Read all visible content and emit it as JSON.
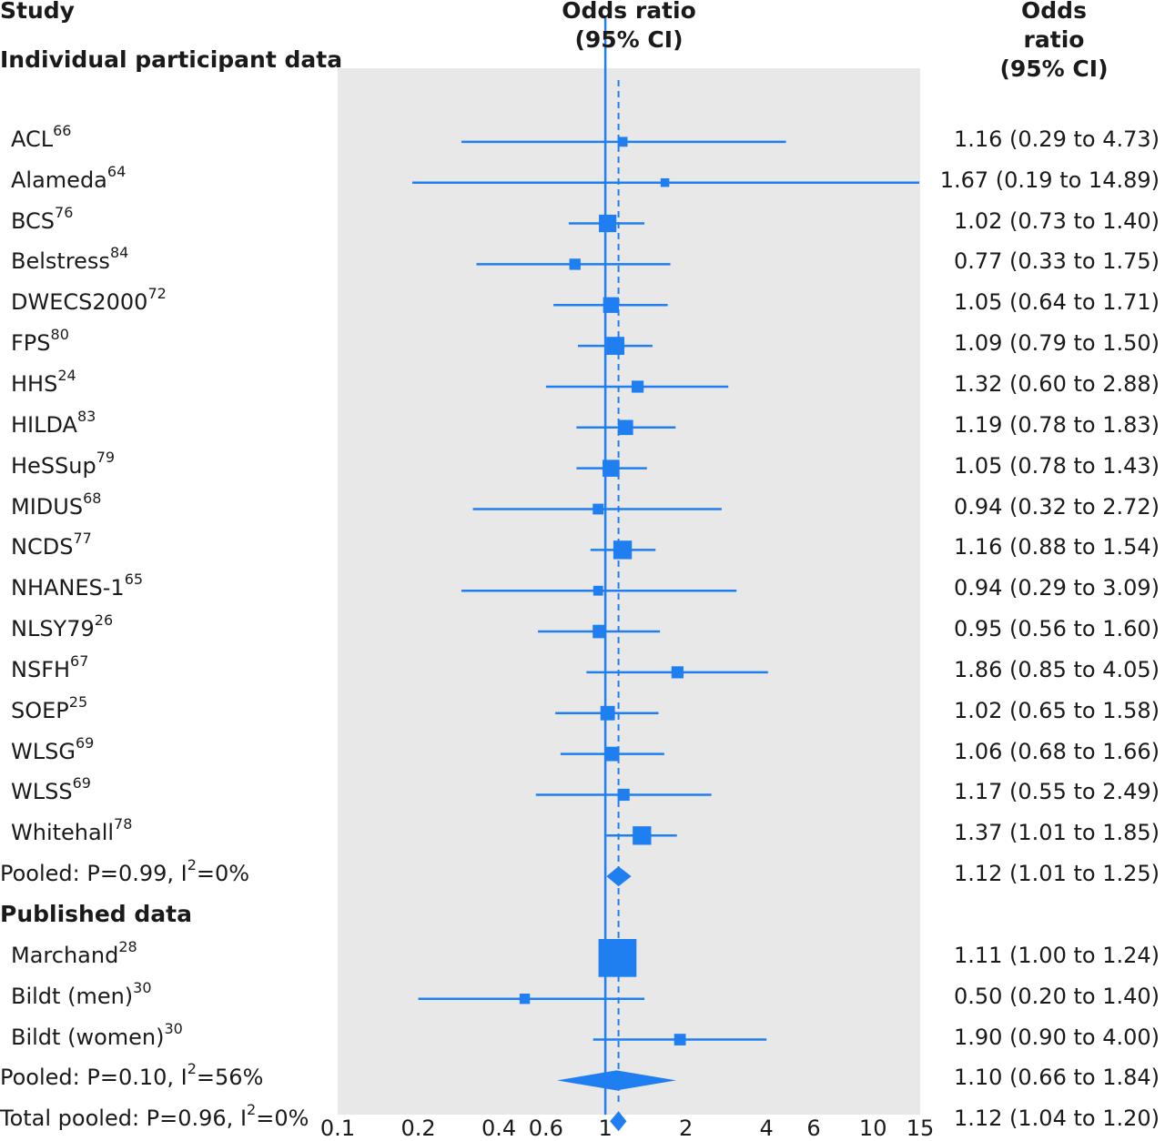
{
  "chart_data": {
    "type": "forest",
    "col_headers": {
      "study": "Study",
      "plot_line1": "Odds ratio",
      "plot_line2": "(95% CI)",
      "ci_line1": "Odds ratio",
      "ci_line2": "(95% CI)"
    },
    "x_axis": {
      "scale": "log",
      "xlim": [
        0.1,
        15
      ],
      "ticks": [
        0.1,
        0.2,
        0.4,
        0.6,
        1,
        2,
        4,
        6,
        10,
        15
      ],
      "tick_labels": [
        "0.1",
        "0.2",
        "0.4",
        "0.6",
        "1",
        "2",
        "4",
        "6",
        "10",
        "15"
      ],
      "null_line": 1,
      "pooled_line": 1.12
    },
    "rows": [
      {
        "kind": "group",
        "label": "Individual participant data"
      },
      {
        "kind": "study",
        "name": "ACL",
        "ref": "66",
        "or": 1.16,
        "lo": 0.29,
        "hi": 4.73,
        "weight": 1.0,
        "text": "1.16 (0.29 to 4.73)"
      },
      {
        "kind": "study",
        "name": "Alameda",
        "ref": "64",
        "or": 1.67,
        "lo": 0.19,
        "hi": 14.89,
        "weight": 0.6,
        "text": "1.67 (0.19 to 14.89)"
      },
      {
        "kind": "study",
        "name": "BCS",
        "ref": "76",
        "or": 1.02,
        "lo": 0.73,
        "hi": 1.4,
        "weight": 6.0,
        "text": "1.02 (0.73 to 1.40)"
      },
      {
        "kind": "study",
        "name": "Belstress",
        "ref": "84",
        "or": 0.77,
        "lo": 0.33,
        "hi": 1.75,
        "weight": 1.6,
        "text": "0.77 (0.33 to 1.75)"
      },
      {
        "kind": "study",
        "name": "DWECS2000",
        "ref": "72",
        "or": 1.05,
        "lo": 0.64,
        "hi": 1.71,
        "weight": 4.5,
        "text": "1.05 (0.64 to 1.71)"
      },
      {
        "kind": "study",
        "name": "FPS",
        "ref": "80",
        "or": 1.09,
        "lo": 0.79,
        "hi": 1.5,
        "weight": 6.5,
        "text": "1.09 (0.79 to 1.50)"
      },
      {
        "kind": "study",
        "name": "HHS",
        "ref": "24",
        "or": 1.32,
        "lo": 0.6,
        "hi": 2.88,
        "weight": 2.0,
        "text": "1.32 (0.60 to 2.88)"
      },
      {
        "kind": "study",
        "name": "HILDA",
        "ref": "83",
        "or": 1.19,
        "lo": 0.78,
        "hi": 1.83,
        "weight": 4.0,
        "text": "1.19 (0.78 to 1.83)"
      },
      {
        "kind": "study",
        "name": "HeSSup",
        "ref": "79",
        "or": 1.05,
        "lo": 0.78,
        "hi": 1.43,
        "weight": 5.5,
        "text": "1.05 (0.78 to 1.43)"
      },
      {
        "kind": "study",
        "name": "MIDUS",
        "ref": "68",
        "or": 0.94,
        "lo": 0.32,
        "hi": 2.72,
        "weight": 1.4,
        "text": "0.94 (0.32 to 2.72)"
      },
      {
        "kind": "study",
        "name": "NCDS",
        "ref": "77",
        "or": 1.16,
        "lo": 0.88,
        "hi": 1.54,
        "weight": 7.0,
        "text": "1.16 (0.88 to 1.54)"
      },
      {
        "kind": "study",
        "name": "NHANES-1",
        "ref": "65",
        "or": 0.94,
        "lo": 0.29,
        "hi": 3.09,
        "weight": 1.0,
        "text": "0.94 (0.29 to 3.09)"
      },
      {
        "kind": "study",
        "name": "NLSY79",
        "ref": "26",
        "or": 0.95,
        "lo": 0.56,
        "hi": 1.6,
        "weight": 2.8,
        "text": "0.95 (0.56 to 1.60)"
      },
      {
        "kind": "study",
        "name": "NSFH",
        "ref": "67",
        "or": 1.86,
        "lo": 0.85,
        "hi": 4.05,
        "weight": 2.0,
        "text": "1.86 (0.85 to 4.05)"
      },
      {
        "kind": "study",
        "name": "SOEP",
        "ref": "25",
        "or": 1.02,
        "lo": 0.65,
        "hi": 1.58,
        "weight": 3.5,
        "text": "1.02 (0.65 to 1.58)"
      },
      {
        "kind": "study",
        "name": "WLSG",
        "ref": "69",
        "or": 1.06,
        "lo": 0.68,
        "hi": 1.66,
        "weight": 3.5,
        "text": "1.06 (0.68 to 1.66)"
      },
      {
        "kind": "study",
        "name": "WLSS",
        "ref": "69",
        "or": 1.17,
        "lo": 0.55,
        "hi": 2.49,
        "weight": 2.0,
        "text": "1.17 (0.55 to 2.49)"
      },
      {
        "kind": "study",
        "name": "Whitehall",
        "ref": "78",
        "or": 1.37,
        "lo": 1.01,
        "hi": 1.85,
        "weight": 7.0,
        "text": "1.37 (1.01 to 1.85)"
      },
      {
        "kind": "pooled",
        "label_pre": "Pooled: P=0.99, I",
        "label_sup": "2",
        "label_post": "=0%",
        "or": 1.12,
        "lo": 1.01,
        "hi": 1.25,
        "text": "1.12 (1.01 to 1.25)"
      },
      {
        "kind": "group",
        "label": "Published data"
      },
      {
        "kind": "study",
        "name": "Marchand",
        "ref": "28",
        "or": 1.11,
        "lo": 1.0,
        "hi": 1.24,
        "weight": 40.0,
        "text": "1.11 (1.00 to 1.24)"
      },
      {
        "kind": "study",
        "name": "Bildt (men)",
        "ref": "30",
        "or": 0.5,
        "lo": 0.2,
        "hi": 1.4,
        "weight": 1.2,
        "text": "0.50 (0.20 to 1.40)"
      },
      {
        "kind": "study",
        "name": "Bildt (women)",
        "ref": "30",
        "or": 1.9,
        "lo": 0.9,
        "hi": 4.0,
        "weight": 1.8,
        "text": "1.90 (0.90 to 4.00)"
      },
      {
        "kind": "pooled",
        "label_pre": "Pooled: P=0.10, I",
        "label_sup": "2",
        "label_post": "=56%",
        "or": 1.1,
        "lo": 0.66,
        "hi": 1.84,
        "text": "1.10 (0.66 to 1.84)"
      },
      {
        "kind": "pooled",
        "label_pre": "Total pooled: P=0.96, I",
        "label_sup": "2",
        "label_post": "=0%",
        "or": 1.12,
        "lo": 1.04,
        "hi": 1.2,
        "text": "1.12 (1.04 to 1.20)"
      }
    ],
    "colors": {
      "marker": "#1f7ff0",
      "panel": "#e8e8e8",
      "text": "#1a1a1a"
    }
  }
}
